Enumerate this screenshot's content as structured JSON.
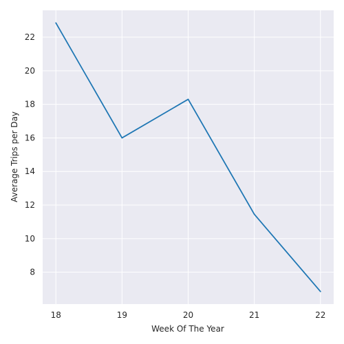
{
  "chart_data": {
    "type": "line",
    "title": "",
    "xlabel": "Week Of The Year",
    "ylabel": "Average Trips per Day",
    "x": [
      18,
      19,
      20,
      21,
      22
    ],
    "series": [
      {
        "values": [
          22.85,
          16.0,
          18.3,
          11.45,
          6.85
        ]
      }
    ],
    "xticks": [
      18,
      19,
      20,
      21,
      22
    ],
    "yticks": [
      8,
      10,
      12,
      14,
      16,
      18,
      20,
      22
    ],
    "xlim": [
      17.8,
      22.2
    ],
    "ylim": [
      6.1,
      23.6
    ],
    "grid": true,
    "colors": {
      "plot_background": "#EAEAF2",
      "grid": "#FFFFFF",
      "line": "#1F77B4"
    }
  }
}
